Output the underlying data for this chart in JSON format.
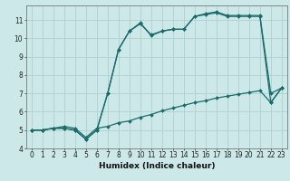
{
  "title": "",
  "xlabel": "Humidex (Indice chaleur)",
  "bg_color": "#cce8e8",
  "grid_color": "#b0d0d0",
  "line_color": "#1a6b6b",
  "xlim": [
    -0.5,
    23.5
  ],
  "ylim": [
    4,
    11.8
  ],
  "yticks": [
    4,
    5,
    6,
    7,
    8,
    9,
    10,
    11
  ],
  "xticks": [
    0,
    1,
    2,
    3,
    4,
    5,
    6,
    7,
    8,
    9,
    10,
    11,
    12,
    13,
    14,
    15,
    16,
    17,
    18,
    19,
    20,
    21,
    22,
    23
  ],
  "series": [
    {
      "x": [
        0,
        1,
        2,
        3,
        4,
        5,
        6,
        7,
        8,
        9,
        10,
        11,
        12,
        13,
        14,
        15,
        16,
        17,
        18,
        19,
        20,
        21,
        22,
        23
      ],
      "y": [
        5.0,
        5.0,
        5.1,
        5.1,
        5.0,
        4.5,
        5.0,
        7.0,
        9.4,
        10.4,
        10.8,
        10.2,
        10.4,
        10.5,
        10.5,
        11.2,
        11.35,
        11.45,
        11.25,
        11.25,
        11.25,
        11.25,
        7.0,
        7.3
      ]
    },
    {
      "x": [
        0,
        1,
        2,
        3,
        4,
        5,
        6,
        7,
        8,
        9,
        10,
        11,
        12,
        13,
        14,
        15,
        16,
        17,
        18,
        19,
        20,
        21,
        22,
        23
      ],
      "y": [
        5.0,
        5.0,
        5.1,
        5.1,
        5.0,
        4.5,
        5.0,
        7.0,
        9.4,
        10.4,
        10.85,
        10.15,
        10.4,
        10.5,
        10.5,
        11.2,
        11.3,
        11.4,
        11.2,
        11.2,
        11.2,
        11.2,
        6.5,
        7.3
      ]
    },
    {
      "x": [
        0,
        1,
        2,
        3,
        4,
        5,
        6,
        7,
        8,
        9,
        10,
        11,
        12,
        13,
        14,
        15,
        16,
        17,
        18,
        19,
        20,
        21,
        22,
        23
      ],
      "y": [
        5.0,
        5.0,
        5.1,
        5.2,
        5.1,
        4.6,
        5.1,
        5.2,
        5.4,
        5.5,
        5.7,
        5.85,
        6.05,
        6.2,
        6.35,
        6.5,
        6.6,
        6.75,
        6.85,
        6.95,
        7.05,
        7.15,
        6.5,
        7.3
      ]
    }
  ],
  "tick_fontsize": 5.5,
  "xlabel_fontsize": 6.5,
  "marker_size": 2.0,
  "linewidth": 0.9
}
